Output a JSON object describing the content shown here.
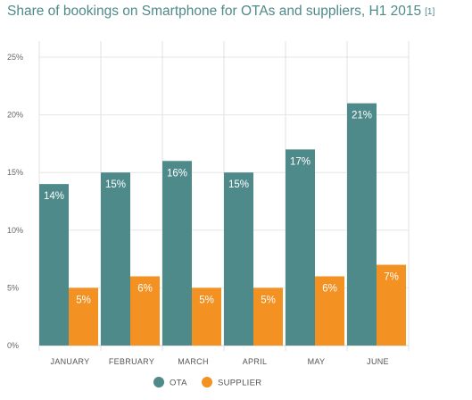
{
  "chart_data": {
    "type": "bar",
    "title": "Share of bookings on Smartphone for OTAs and suppliers, H1 2015",
    "footnote": "[1]",
    "categories": [
      "JANUARY",
      "FEBRUARY",
      "MARCH",
      "APRIL",
      "MAY",
      "JUNE"
    ],
    "series": [
      {
        "name": "OTA",
        "color": "#4f8a8b",
        "values": [
          14,
          15,
          16,
          15,
          17,
          21
        ],
        "labels": [
          "14%",
          "15%",
          "16%",
          "15%",
          "17%",
          "21%"
        ]
      },
      {
        "name": "SUPPLIER",
        "color": "#f39123",
        "values": [
          5,
          6,
          5,
          5,
          6,
          7
        ],
        "labels": [
          "5%",
          "6%",
          "5%",
          "5%",
          "6%",
          "7%"
        ]
      }
    ],
    "y_ticks": [
      "0%",
      "5%",
      "10%",
      "15%",
      "20%",
      "25%"
    ],
    "ylim": [
      0,
      25
    ],
    "grid": true,
    "legend_position": "bottom-center"
  }
}
